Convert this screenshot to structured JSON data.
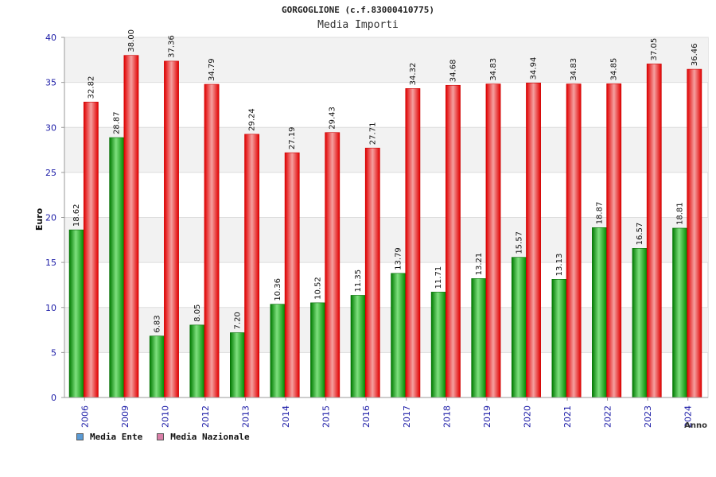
{
  "chart_data": {
    "type": "bar",
    "title": "GORGOGLIONE (c.f.83000410775)",
    "subtitle": "Media Importi",
    "xlabel": "Anno",
    "ylabel": "Euro",
    "ylim": [
      0,
      40
    ],
    "yticks": [
      0,
      5,
      10,
      15,
      20,
      25,
      30,
      35,
      40
    ],
    "grid": true,
    "legend_position": "bottom-left",
    "categories": [
      "2006",
      "2009",
      "2010",
      "2012",
      "2013",
      "2014",
      "2015",
      "2016",
      "2017",
      "2018",
      "2019",
      "2020",
      "2021",
      "2022",
      "2023",
      "2024"
    ],
    "series": [
      {
        "name": "Media Ente",
        "color": "#00a000",
        "legend_color": "#5b9bd5",
        "values": [
          18.62,
          28.87,
          6.83,
          8.05,
          7.2,
          10.36,
          10.52,
          11.35,
          13.79,
          11.71,
          13.21,
          15.57,
          13.13,
          18.87,
          16.57,
          18.81
        ],
        "labels": [
          "18.62",
          "28.87",
          "6.83",
          "8.05",
          "7.20",
          "10.36",
          "10.52",
          "11.35",
          "13.79",
          "11.71",
          "13.21",
          "15.57",
          "13.13",
          "18.87",
          "16.57",
          "18.81"
        ]
      },
      {
        "name": "Media Nazionale",
        "color": "#ee0000",
        "legend_color": "#d97fa8",
        "values": [
          32.82,
          38.0,
          37.36,
          34.79,
          29.24,
          27.19,
          29.43,
          27.71,
          34.32,
          34.68,
          34.83,
          34.94,
          34.83,
          34.85,
          37.05,
          36.46
        ],
        "labels": [
          "32.82",
          "38.00",
          "37.36",
          "34.79",
          "29.24",
          "27.19",
          "29.43",
          "27.71",
          "34.32",
          "34.68",
          "34.83",
          "34.94",
          "34.83",
          "34.85",
          "37.05",
          "36.46"
        ]
      }
    ]
  }
}
